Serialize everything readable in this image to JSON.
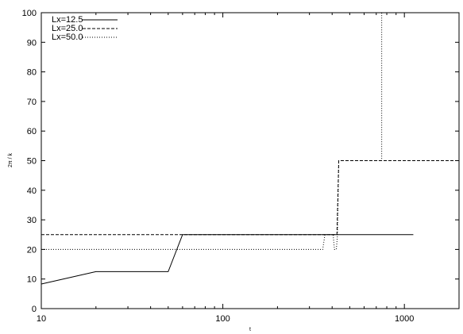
{
  "chart_data": {
    "type": "line",
    "xlabel": "t",
    "ylabel": "2π / k",
    "xscale": "log",
    "xlim": [
      10,
      2000
    ],
    "ylim": [
      0,
      100
    ],
    "xticks": [
      10,
      100,
      1000
    ],
    "xtick_labels": [
      "10",
      "100",
      "1000"
    ],
    "yticks": [
      0,
      10,
      20,
      30,
      40,
      50,
      60,
      70,
      80,
      90,
      100
    ],
    "ytick_labels": [
      "0",
      "10",
      "20",
      "30",
      "40",
      "50",
      "60",
      "70",
      "80",
      "90",
      "100"
    ],
    "grid": false,
    "legend_position": "top-left",
    "series": [
      {
        "name": "Lx=12.5",
        "style": "solid",
        "points": [
          [
            10,
            8.3
          ],
          [
            20,
            12.5
          ],
          [
            50,
            12.5
          ],
          [
            60,
            25
          ],
          [
            1120,
            25
          ]
        ]
      },
      {
        "name": "Lx=25.0",
        "style": "dashed",
        "points": [
          [
            10,
            25
          ],
          [
            425,
            25
          ],
          [
            435,
            50
          ],
          [
            2000,
            50
          ]
        ]
      },
      {
        "name": "Lx=50.0",
        "style": "dotted",
        "points": [
          [
            10,
            20
          ],
          [
            355,
            20
          ],
          [
            365,
            25
          ],
          [
            405,
            25
          ],
          [
            412,
            20
          ],
          [
            422,
            20
          ],
          [
            428,
            25
          ],
          [
            435,
            50
          ],
          [
            750,
            50
          ],
          [
            750,
            100
          ]
        ]
      }
    ]
  }
}
